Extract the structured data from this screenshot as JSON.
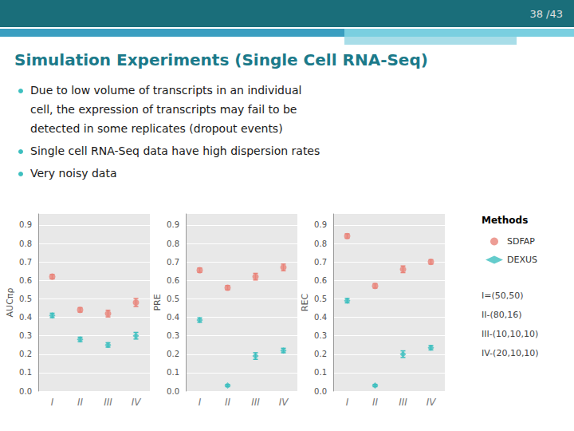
{
  "title": "Simulation Experiments (Single Cell RNA-Seq)",
  "annotations": [
    "38 /43",
    [
      "Due to low volume of transcripts in an individual",
      "cell, the expression of transcripts may fail to be",
      "detected in some replicates (dropout events)"
    ],
    [
      "Single cell RNA-Seq data have high dispersion rates"
    ],
    [
      "Very noisy data"
    ]
  ],
  "chart_data": [
    {
      "type": "scatter",
      "y_label": "AUCπρ",
      "categories": [
        "I",
        "II",
        "III",
        "IV"
      ],
      "ylim": [
        0.0,
        0.96
      ],
      "yticks": [
        {
          "value": 0.0,
          "label": "0.0"
        },
        0.1,
        0.2,
        0.3,
        0.4,
        0.5,
        0.6,
        0.7,
        0.8,
        0.9
      ],
      "grid": true,
      "series": [
        {
          "name": "SDFAP",
          "color": "#E8847A",
          "marker": "circle",
          "values": [
            0.62,
            0.44,
            0.42,
            0.48
          ],
          "yerr": [
            0.012,
            0.012,
            0.018,
            0.022
          ]
        },
        {
          "name": "DEXUS",
          "color": "#3DBFBF",
          "marker": "diamond",
          "values": [
            0.41,
            0.28,
            0.25,
            0.3
          ],
          "yerr": [
            0.012,
            0.012,
            0.012,
            0.018
          ]
        }
      ]
    },
    {
      "type": "scatter",
      "y_label": "PRE",
      "categories": [
        "I",
        "II",
        "III",
        "IV"
      ],
      "ylim": [
        0.0,
        0.96
      ],
      "yticks": [
        {
          "value": 0.0,
          "label": "0.0"
        },
        0.1,
        0.2,
        0.3,
        0.4,
        0.5,
        0.6,
        0.7,
        0.8,
        0.9
      ],
      "grid": true,
      "series": [
        {
          "name": "SDFAP",
          "color": "#E8847A",
          "marker": "circle",
          "values": [
            0.655,
            0.56,
            0.62,
            0.67
          ],
          "yerr": [
            0.012,
            0.012,
            0.018,
            0.018
          ]
        },
        {
          "name": "DEXUS",
          "color": "#3DBFBF",
          "marker": "diamond",
          "values": [
            0.385,
            0.03,
            0.19,
            0.22
          ],
          "yerr": [
            0.012,
            0.006,
            0.018,
            0.012
          ]
        }
      ]
    },
    {
      "type": "scatter",
      "y_label": "REC",
      "categories": [
        "I",
        "II",
        "III",
        "IV"
      ],
      "ylim": [
        0.0,
        0.96
      ],
      "yticks": [
        {
          "value": 0.0,
          "label": "0.0"
        },
        0.1,
        0.2,
        0.3,
        0.4,
        0.5,
        0.6,
        0.7,
        0.8,
        0.9
      ],
      "grid": true,
      "legend": "right",
      "annotations": [
        "Methods",
        "I=(50,50)",
        "II-(80,16)",
        "III-(10,10,10)",
        "IV-(20,10,10)"
      ],
      "series": [
        {
          "name": "SDFAP",
          "color": "#E8847A",
          "marker": "circle",
          "values": [
            0.84,
            0.57,
            0.66,
            0.7
          ],
          "yerr": [
            0.012,
            0.012,
            0.018,
            0.012
          ]
        },
        {
          "name": "DEXUS",
          "color": "#3DBFBF",
          "marker": "diamond",
          "values": [
            0.49,
            0.03,
            0.2,
            0.235
          ],
          "yerr": [
            0.012,
            0.006,
            0.018,
            0.012
          ]
        }
      ]
    }
  ]
}
